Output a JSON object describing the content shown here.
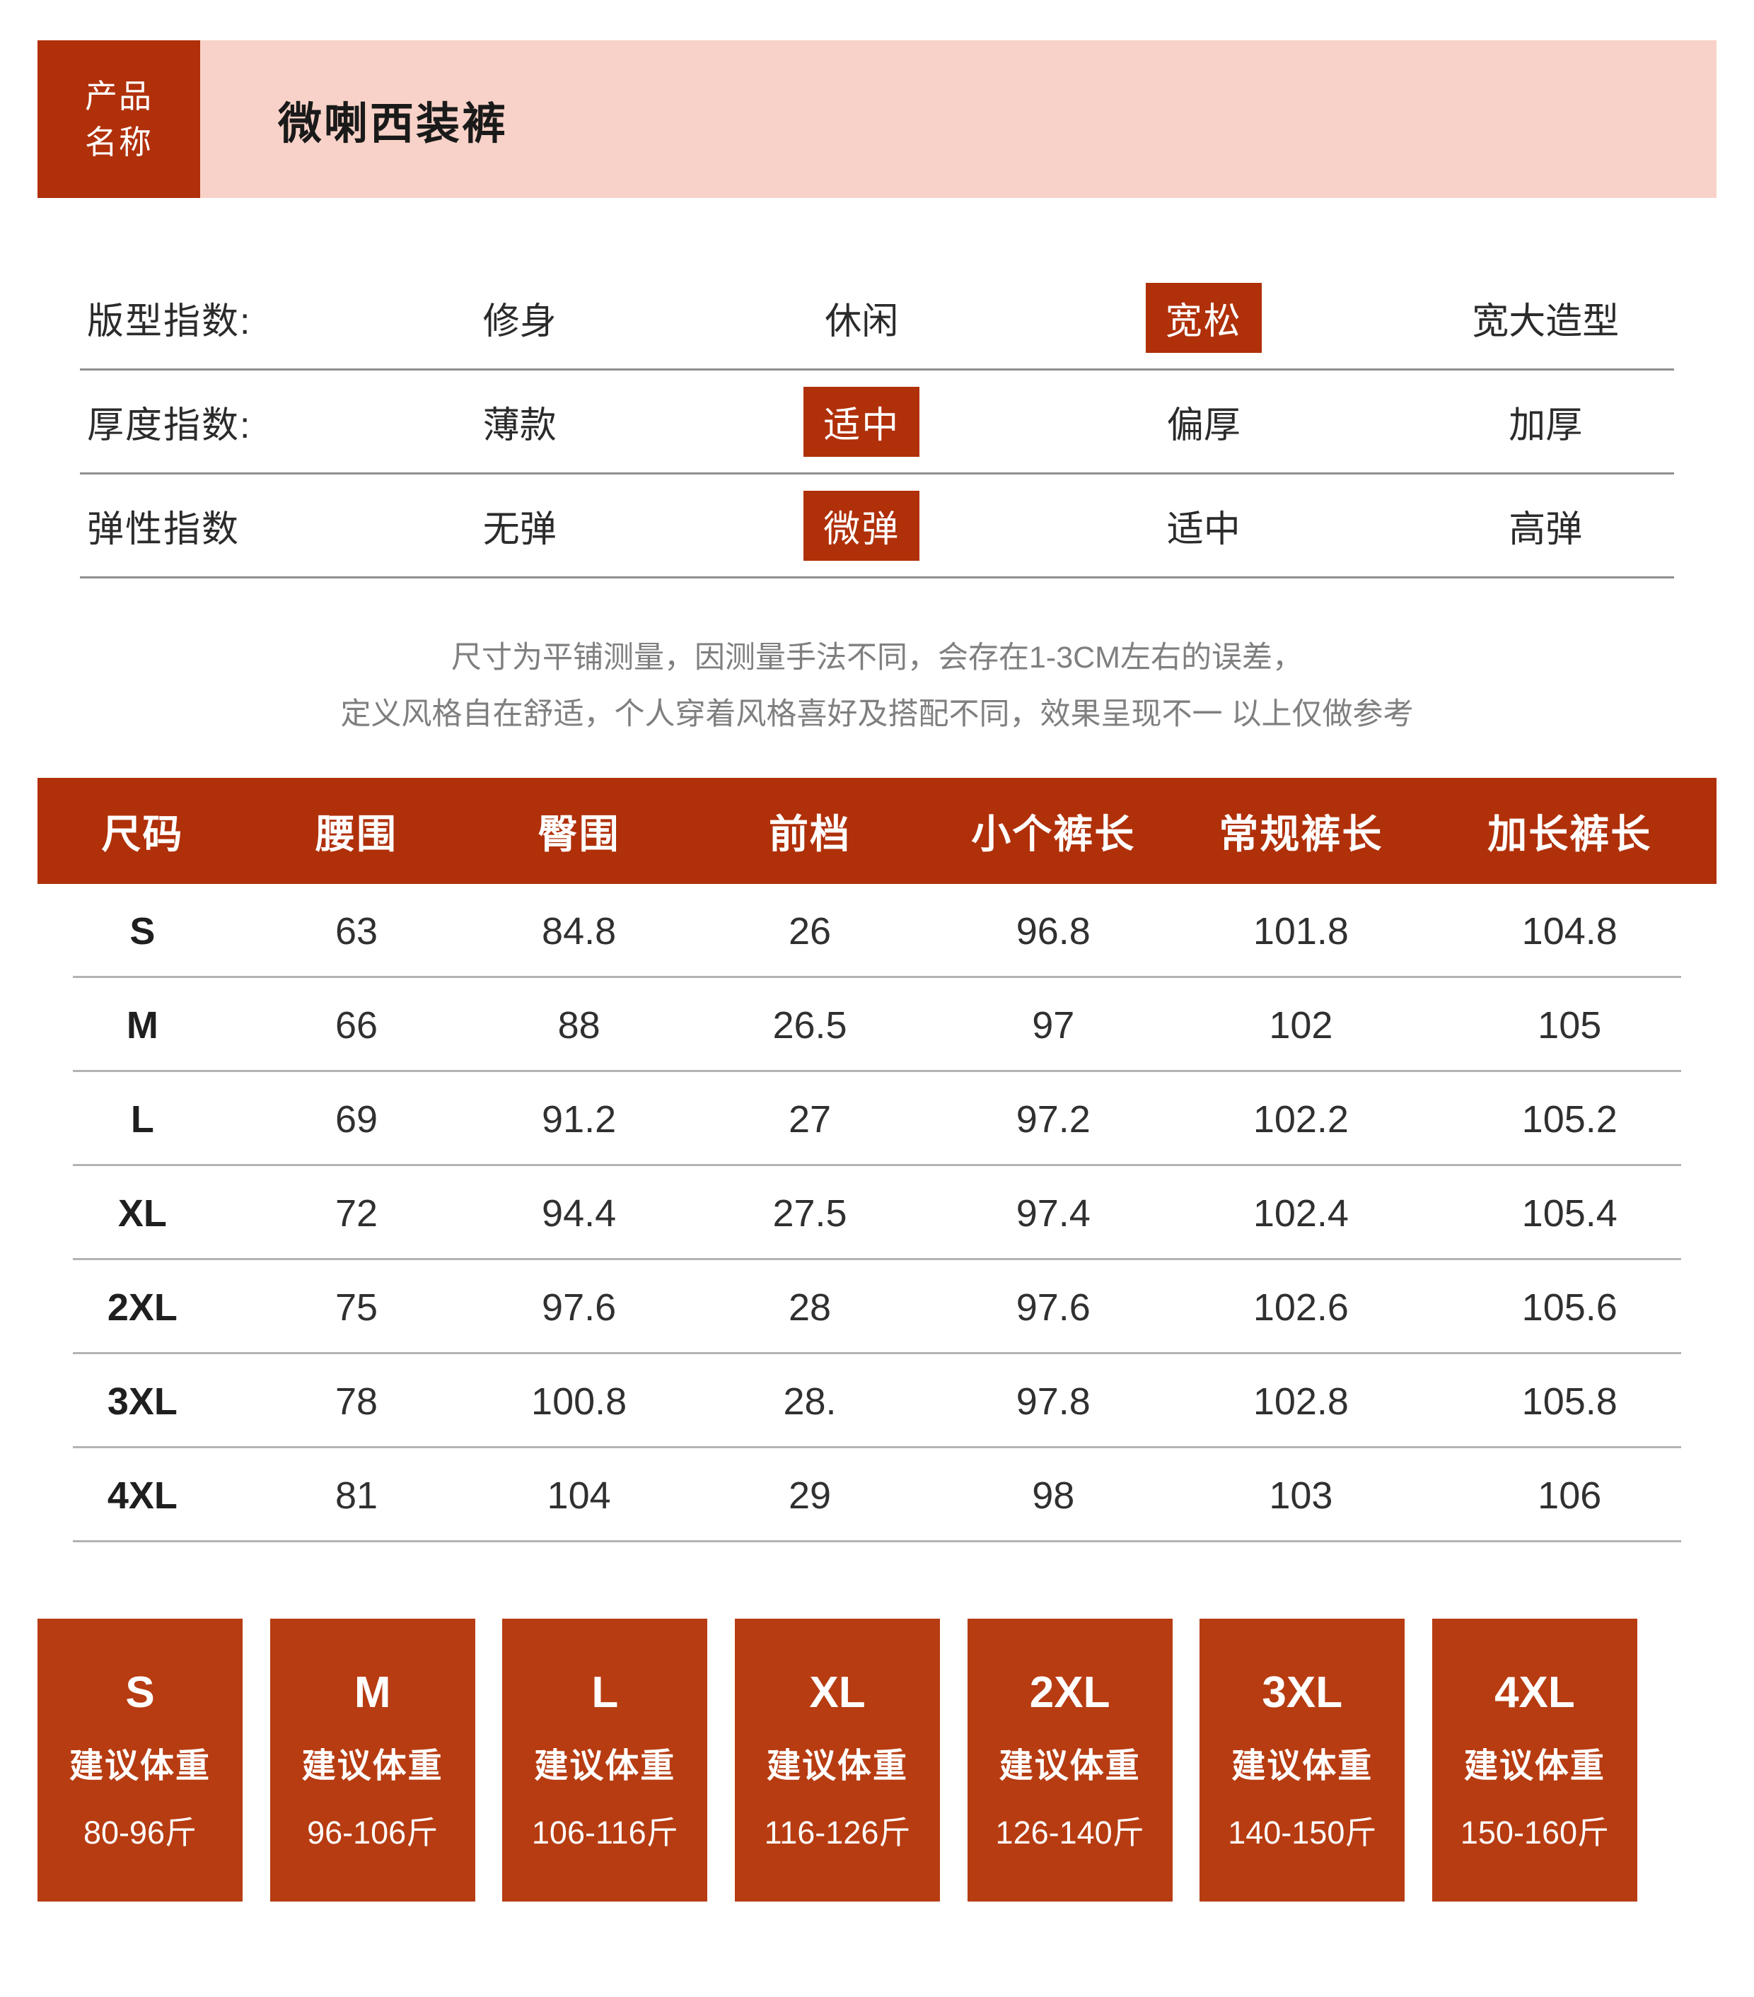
{
  "colors": {
    "pink": "#F8D2C8",
    "accent_red": "#B0300A",
    "box_red": "#B73C12"
  },
  "product": {
    "label": "产品名称",
    "label_lines": [
      "产品",
      "名称"
    ],
    "name": "微喇西装裤"
  },
  "index_rows": [
    {
      "label": "版型指数:",
      "options": [
        "修身",
        "休闲",
        "宽松",
        "宽大造型"
      ],
      "highlighted": "宽松",
      "highlighted_index": 2
    },
    {
      "label": "厚度指数:",
      "options": [
        "薄款",
        "适中",
        "偏厚",
        "加厚"
      ],
      "highlighted": "适中",
      "highlighted_index": 1
    },
    {
      "label": "弹性指数",
      "options": [
        "无弹",
        "微弹",
        "适中",
        "高弹"
      ],
      "highlighted": "微弹",
      "highlighted_index": 1
    }
  ],
  "disclaimer": {
    "line1": "尺寸为平铺测量，因测量手法不同，会存在1-3CM左右的误差，",
    "line2": "定义风格自在舒适，个人穿着风格喜好及搭配不同，效果呈现不一 以上仅做参考"
  },
  "size_table": {
    "headers": [
      "尺码",
      "腰围",
      "臀围",
      "前档",
      "小个裤长",
      "常规裤长",
      "加长裤长"
    ],
    "rows": [
      {
        "size": "S",
        "values": [
          "63",
          "84.8",
          "26",
          "96.8",
          "101.8",
          "104.8"
        ]
      },
      {
        "size": "M",
        "values": [
          "66",
          "88",
          "26.5",
          "97",
          "102",
          "105"
        ]
      },
      {
        "size": "L",
        "values": [
          "69",
          "91.2",
          "27",
          "97.2",
          "102.2",
          "105.2"
        ]
      },
      {
        "size": "XL",
        "values": [
          "72",
          "94.4",
          "27.5",
          "97.4",
          "102.4",
          "105.4"
        ]
      },
      {
        "size": "2XL",
        "values": [
          "75",
          "97.6",
          "28",
          "97.6",
          "102.6",
          "105.6"
        ]
      },
      {
        "size": "3XL",
        "values": [
          "78",
          "100.8",
          "28.",
          "97.8",
          "102.8",
          "105.8"
        ]
      },
      {
        "size": "4XL",
        "values": [
          "81",
          "104",
          "29",
          "98",
          "103",
          "106"
        ]
      }
    ]
  },
  "weight_boxes": [
    {
      "size": "S",
      "label": "建议体重",
      "range": "80-96斤"
    },
    {
      "size": "M",
      "label": "建议体重",
      "range": "96-106斤"
    },
    {
      "size": "L",
      "label": "建议体重",
      "range": "106-116斤"
    },
    {
      "size": "XL",
      "label": "建议体重",
      "range": "116-126斤"
    },
    {
      "size": "2XL",
      "label": "建议体重",
      "range": "126-140斤"
    },
    {
      "size": "3XL",
      "label": "建议体重",
      "range": "140-150斤"
    },
    {
      "size": "4XL",
      "label": "建议体重",
      "range": "150-160斤"
    }
  ]
}
